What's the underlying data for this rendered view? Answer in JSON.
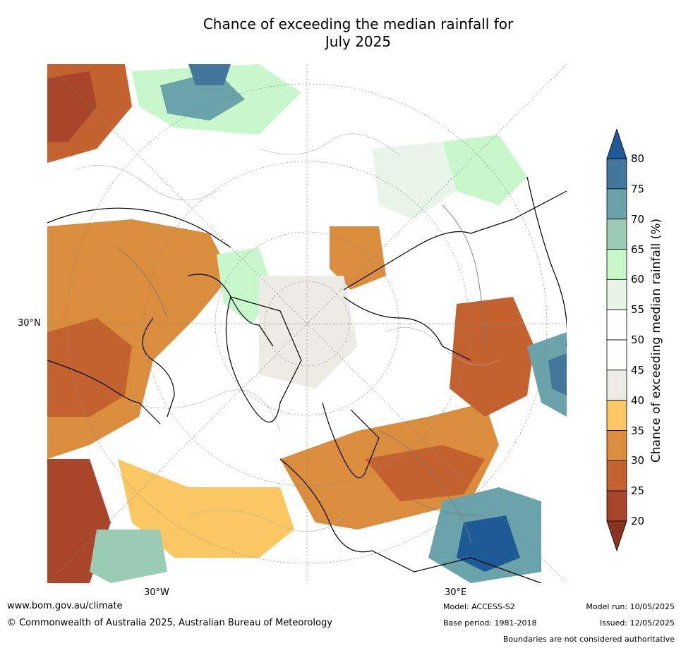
{
  "title_line1": "Chance of exceeding the median rainfall for",
  "title_line2": "July 2025",
  "map": {
    "labels": {
      "lat": "30°N",
      "lon_w": "30°W",
      "lon_e": "30°E"
    },
    "colors": {
      "c20": "#a9452a",
      "c25": "#c3622f",
      "c30": "#db8d3e",
      "c35": "#fbc762",
      "c40": "#ecebe6",
      "c50": "#ffffff",
      "c60": "#e8f5e8",
      "c65": "#c8f7cc",
      "c70": "#9bcbb4",
      "c75": "#6aa3aa",
      "c80": "#44779b",
      "c85": "#1d5a96",
      "coast": "#000000",
      "border": "#7a7a7a",
      "grid": "#888888",
      "contour": "#b0b0b0"
    }
  },
  "colorbar": {
    "title": "Chance of exceeding median rainfall (%)",
    "ticks": [
      "80",
      "75",
      "70",
      "65",
      "60",
      "55",
      "50",
      "45",
      "40",
      "35",
      "30",
      "25",
      "20"
    ],
    "segments": [
      "#44779b",
      "#6aa3aa",
      "#9bcbb4",
      "#c8f7cc",
      "#e8f5e8",
      "#ffffff",
      "#ffffff",
      "#ecebe6",
      "#fbc762",
      "#db8d3e",
      "#c3622f",
      "#a9452a"
    ],
    "over_color": "#1d5a96",
    "under_color": "#8c3320"
  },
  "footer": {
    "url": "www.bom.gov.au/climate",
    "copyright": "© Commonwealth of Australia 2025, Australian Bureau of Meteorology",
    "model": "Model: ACCESS-S2",
    "base_period": "Base period: 1981-2018",
    "model_run": "Model run: 10/05/2025",
    "issued": "Issued: 12/05/2025",
    "disclaimer": "Boundaries are not considered authoritative"
  }
}
